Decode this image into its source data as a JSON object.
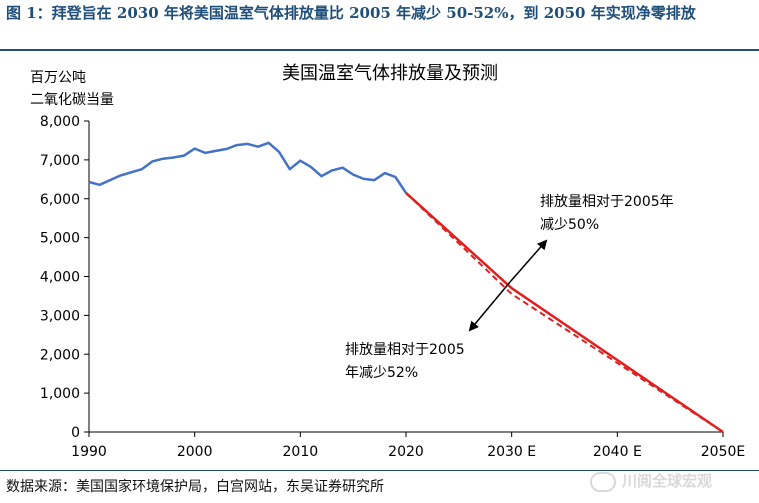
{
  "figure": {
    "title": "图 1：拜登旨在 2030 年将美国温室气体排放量比 2005 年减少 50-52%，到 2050 年实现净零排放",
    "source": "数据来源：美国国家环境保护局，白宫网站，东吴证券研究所",
    "watermark": "川阅全球宏观"
  },
  "chart_data": {
    "type": "line",
    "title": "美国温室气体排放量及预测",
    "ylabel": "百万公吨 二氧化碳当量",
    "ylabel_lines": [
      "百万公吨",
      "二氧化碳当量"
    ],
    "ylim": [
      0,
      8000
    ],
    "xlim": [
      1990,
      2050
    ],
    "yticks": [
      0,
      1000,
      2000,
      3000,
      4000,
      5000,
      6000,
      7000,
      8000
    ],
    "ytick_labels": [
      "0",
      "1,000",
      "2,000",
      "3,000",
      "4,000",
      "5,000",
      "6,000",
      "7,000",
      "8,000"
    ],
    "xticks": [
      1990,
      2000,
      2010,
      2020,
      2030,
      2040,
      2050
    ],
    "xtick_labels": [
      "1990",
      "2000",
      "2010",
      "2020",
      "2030 E",
      "2040 E",
      "2050E"
    ],
    "grid": false,
    "legend": "none",
    "series": [
      {
        "style": "solid",
        "color": "#4472c4",
        "x": [
          1990,
          1991,
          1992,
          1993,
          1994,
          1995,
          1996,
          1997,
          1998,
          1999,
          2000,
          2001,
          2002,
          2003,
          2004,
          2005,
          2006,
          2007,
          2008,
          2009,
          2010,
          2011,
          2012,
          2013,
          2014,
          2015,
          2016,
          2017,
          2018,
          2019,
          2020
        ],
        "y": [
          6430,
          6360,
          6480,
          6600,
          6680,
          6760,
          6960,
          7030,
          7060,
          7110,
          7290,
          7180,
          7230,
          7280,
          7380,
          7410,
          7340,
          7440,
          7200,
          6760,
          6980,
          6820,
          6580,
          6730,
          6800,
          6620,
          6510,
          6480,
          6660,
          6560,
          6150
        ]
      },
      {
        "style": "solid",
        "color": "#e02020",
        "x": [
          2020,
          2030,
          2050
        ],
        "y": [
          6150,
          3700,
          0
        ]
      },
      {
        "style": "dashed",
        "color": "#e02020",
        "x": [
          2020,
          2030,
          2050
        ],
        "y": [
          6150,
          3550,
          0
        ]
      }
    ],
    "annotations": [
      {
        "lines": [
          "排放量相对于2005年",
          "减少50%"
        ]
      },
      {
        "lines": [
          "排放量相对于2005",
          "年减少52%"
        ]
      }
    ]
  }
}
